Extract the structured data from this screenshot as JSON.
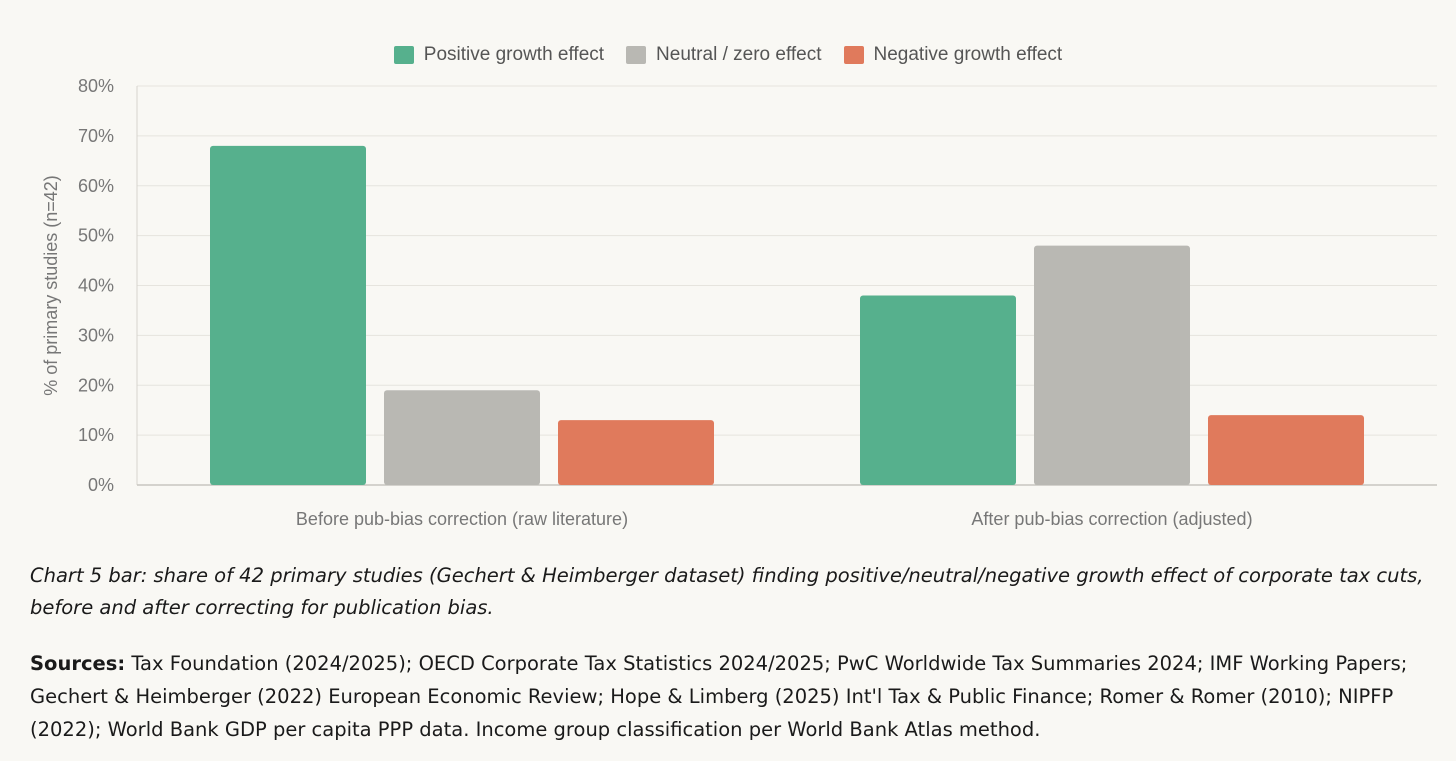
{
  "chart_data": {
    "type": "bar",
    "categories": [
      "Before pub-bias correction (raw literature)",
      "After pub-bias correction (adjusted)"
    ],
    "series": [
      {
        "name": "Positive growth effect",
        "values": [
          68,
          38
        ],
        "color": "#56b08d"
      },
      {
        "name": "Neutral / zero effect",
        "values": [
          19,
          48
        ],
        "color": "#b9b8b3"
      },
      {
        "name": "Negative growth effect",
        "values": [
          13,
          14
        ],
        "color": "#e07a5c"
      }
    ],
    "ylabel": "% of primary studies (n=42)",
    "ylim": [
      0,
      80
    ],
    "yticks": [
      "0%",
      "10%",
      "20%",
      "30%",
      "40%",
      "50%",
      "60%",
      "70%",
      "80%"
    ],
    "grid": true,
    "legend_position": "top-center"
  },
  "caption": "Chart 5 bar: share of 42 primary studies (Gechert & Heimberger dataset) finding positive/neutral/negative growth effect of corporate tax cuts, before and after correcting for publication bias.",
  "sources": {
    "label": "Sources:",
    "text": " Tax Foundation (2024/2025); OECD Corporate Tax Statistics 2024/2025; PwC Worldwide Tax Summaries 2024; IMF Working Papers; Gechert & Heimberger (2022) European Economic Review; Hope & Limberg (2025) Int'l Tax & Public Finance; Romer & Romer (2010); NIPFP (2022); World Bank GDP per capita PPP data. Income group classification per World Bank Atlas method."
  }
}
